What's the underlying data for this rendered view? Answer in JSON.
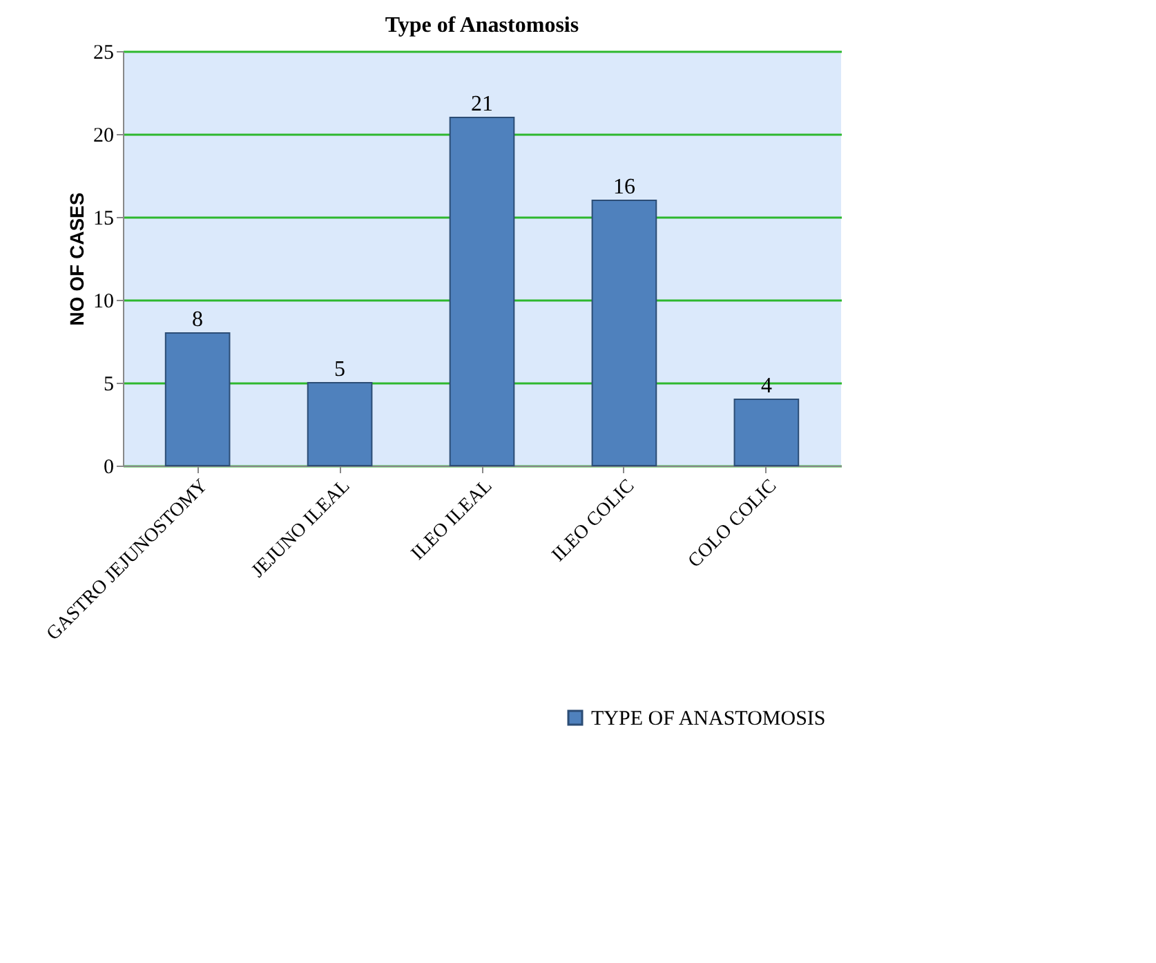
{
  "chart_data": {
    "type": "bar",
    "title": "Type of Anastomosis",
    "ylabel": "NO OF CASES",
    "categories": [
      "GASTRO JEJUNOSTOMY",
      "JEJUNO ILEAL",
      "ILEO ILEAL",
      "ILEO COLIC",
      "COLO COLIC"
    ],
    "series": [
      {
        "name": "TYPE OF ANASTOMOSIS",
        "color": "#4f81bd",
        "values": [
          8,
          5,
          21,
          16,
          4
        ]
      }
    ],
    "ylim": [
      0,
      25
    ],
    "yticks": [
      0,
      5,
      10,
      15,
      20,
      25
    ],
    "grid": true,
    "data_labels": true,
    "legend": "bottom right"
  }
}
